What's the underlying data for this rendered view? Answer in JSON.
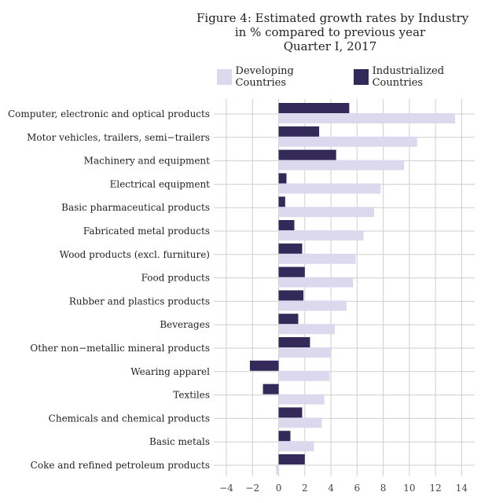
{
  "chart_data": {
    "type": "bar",
    "orientation": "horizontal",
    "title_lines": [
      "Figure 4: Estimated growth rates by Industry",
      "in % compared to previous year",
      "Quarter I, 2017"
    ],
    "xlim": [
      -4,
      15
    ],
    "xticks": [
      "−4",
      "−2",
      "0",
      "2",
      "4",
      "6",
      "8",
      "10",
      "12",
      "14"
    ],
    "xtick_values": [
      -4,
      -2,
      0,
      2,
      4,
      6,
      8,
      10,
      12,
      14
    ],
    "legend_position": "top",
    "grid": true,
    "categories": [
      "Computer, electronic and optical products",
      "Motor vehicles, trailers, semi−trailers",
      "Machinery and equipment",
      "Electrical equipment",
      "Basic pharmaceutical products",
      "Fabricated metal products",
      "Wood products (excl. furniture)",
      "Food products",
      "Rubber and plastics products",
      "Beverages",
      "Other non−metallic mineral products",
      "Wearing apparel",
      "Textiles",
      "Chemicals and chemical products",
      "Basic metals",
      "Coke and refined petroleum products"
    ],
    "series": [
      {
        "name": "Developing Countries",
        "color": "#dcd9ee",
        "values": [
          13.5,
          10.6,
          9.6,
          7.8,
          7.3,
          6.5,
          5.9,
          5.7,
          5.2,
          4.3,
          4.0,
          3.9,
          3.5,
          3.3,
          2.7,
          -0.2
        ]
      },
      {
        "name": "Industrialized Countries",
        "color": "#332a59",
        "values": [
          5.4,
          3.1,
          4.4,
          0.6,
          0.5,
          1.2,
          1.8,
          2.0,
          1.9,
          1.5,
          2.4,
          -2.2,
          -1.2,
          1.8,
          0.9,
          2.0
        ]
      }
    ]
  }
}
